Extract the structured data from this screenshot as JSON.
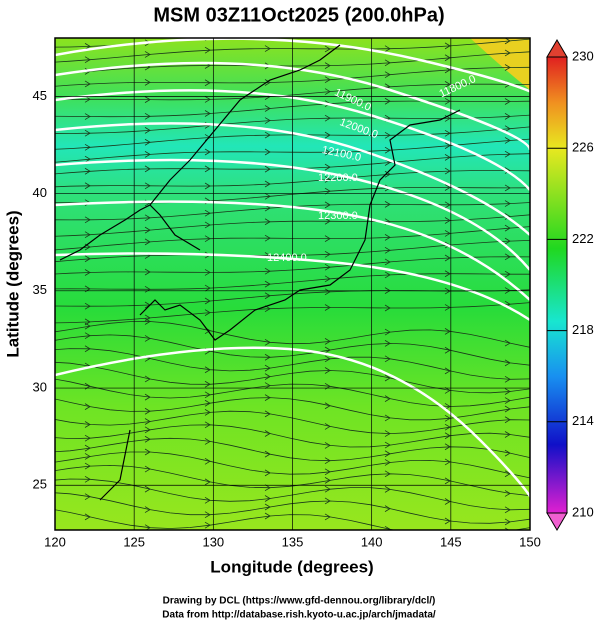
{
  "map": {
    "title": "MSM 03Z11Oct2025 (200.0hPa)",
    "x_label": "Longitude (degrees)",
    "y_label": "Latitude  (degrees)",
    "xlim": [
      120,
      150
    ],
    "ylim": [
      22.7,
      48
    ],
    "xticks": [
      120,
      125,
      130,
      135,
      140,
      145,
      150
    ],
    "yticks": [
      25,
      30,
      35,
      40,
      45
    ],
    "colorbar": {
      "lim": [
        210,
        230
      ],
      "ticks": [
        210,
        214,
        218,
        222,
        226,
        230
      ]
    },
    "contour_labels": [
      "11800.0",
      "11900.0",
      "12000.0",
      "12100.0",
      "12200.0",
      "12300.0",
      "12400.0"
    ],
    "footer": [
      "Drawing by DCL (https://www.gfd-dennou.org/library/dcl/)",
      "Data from http://database.rish.kyoto-u.ac.jp/arch/jmadata/"
    ]
  }
}
